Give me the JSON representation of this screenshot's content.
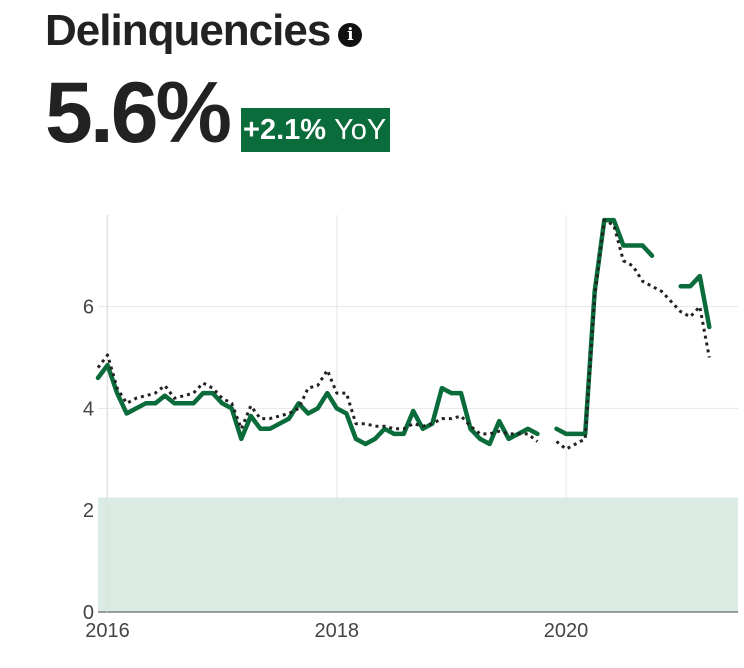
{
  "header": {
    "title": "Delinquencies",
    "info_icon": "info-icon",
    "value": "5.6%",
    "yoy_change": "+2.1%",
    "yoy_suffix": "YoY"
  },
  "colors": {
    "accent": "#0a6b3b",
    "band": "#d9ebe2",
    "text": "#222222",
    "grid": "#e6e6e6",
    "dotted_series": "#222222"
  },
  "chart_data": {
    "type": "line",
    "x_axis": {
      "type": "date",
      "range": [
        "2015-12",
        "2021-07"
      ],
      "ticks": [
        "2016",
        "2018",
        "2020"
      ]
    },
    "y_axis": {
      "range": [
        0,
        7.8
      ],
      "ticks": [
        0,
        2,
        4,
        6
      ]
    },
    "grid": true,
    "shaded_band": {
      "y_from": 0,
      "y_to": 2.25
    },
    "series": [
      {
        "style": "solid",
        "color": "#0a6b3b",
        "segments": [
          {
            "x": [
              "2015-12",
              "2016-01",
              "2016-02",
              "2016-03",
              "2016-04",
              "2016-05",
              "2016-06",
              "2016-07",
              "2016-08",
              "2016-09",
              "2016-10",
              "2016-11",
              "2016-12",
              "2017-01",
              "2017-02",
              "2017-03",
              "2017-04",
              "2017-05",
              "2017-06",
              "2017-07",
              "2017-08",
              "2017-09",
              "2017-10",
              "2017-11",
              "2017-12",
              "2018-01",
              "2018-02",
              "2018-03",
              "2018-04",
              "2018-05",
              "2018-06",
              "2018-07",
              "2018-08",
              "2018-09",
              "2018-10",
              "2018-11",
              "2018-12",
              "2019-01",
              "2019-02",
              "2019-03",
              "2019-04",
              "2019-05",
              "2019-06",
              "2019-07",
              "2019-08",
              "2019-09",
              "2019-10"
            ],
            "y": [
              4.6,
              4.85,
              4.3,
              3.9,
              4.0,
              4.1,
              4.1,
              4.25,
              4.1,
              4.1,
              4.1,
              4.3,
              4.3,
              4.1,
              4.0,
              3.4,
              3.85,
              3.6,
              3.6,
              3.7,
              3.8,
              4.1,
              3.9,
              4.0,
              4.3,
              4.0,
              3.9,
              3.4,
              3.3,
              3.4,
              3.6,
              3.5,
              3.5,
              3.95,
              3.6,
              3.7,
              4.4,
              4.3,
              4.3,
              3.6,
              3.4,
              3.3,
              3.75,
              3.4,
              3.5,
              3.6,
              3.5
            ]
          },
          {
            "x": [
              "2019-12",
              "2020-01",
              "2020-02",
              "2020-03",
              "2020-04",
              "2020-05",
              "2020-06",
              "2020-07",
              "2020-08",
              "2020-09",
              "2020-10"
            ],
            "y": [
              3.6,
              3.5,
              3.5,
              3.5,
              6.3,
              7.7,
              7.7,
              7.2,
              7.2,
              7.2,
              7.0
            ]
          },
          {
            "x": [
              "2021-01",
              "2021-02",
              "2021-03",
              "2021-04"
            ],
            "y": [
              6.4,
              6.4,
              6.6,
              5.6
            ]
          }
        ]
      },
      {
        "style": "dotted",
        "color": "#222222",
        "segments": [
          {
            "x": [
              "2015-12",
              "2016-01",
              "2016-02",
              "2016-03",
              "2016-04",
              "2016-05",
              "2016-06",
              "2016-07",
              "2016-08",
              "2016-09",
              "2016-10",
              "2016-11",
              "2016-12",
              "2017-01",
              "2017-02",
              "2017-03",
              "2017-04",
              "2017-05",
              "2017-06",
              "2017-07",
              "2017-08",
              "2017-09",
              "2017-10",
              "2017-11",
              "2017-12",
              "2018-01",
              "2018-02",
              "2018-03",
              "2018-04",
              "2018-05",
              "2018-06",
              "2018-07",
              "2018-08",
              "2018-09",
              "2018-10",
              "2018-11",
              "2018-12",
              "2019-01",
              "2019-02",
              "2019-03",
              "2019-04",
              "2019-05",
              "2019-06",
              "2019-07",
              "2019-08",
              "2019-09",
              "2019-10"
            ],
            "y": [
              4.8,
              5.05,
              4.4,
              4.1,
              4.2,
              4.25,
              4.3,
              4.45,
              4.2,
              4.25,
              4.3,
              4.5,
              4.4,
              4.2,
              4.1,
              3.6,
              4.05,
              3.8,
              3.8,
              3.85,
              3.9,
              4.0,
              4.4,
              4.45,
              4.75,
              4.3,
              4.3,
              3.7,
              3.7,
              3.65,
              3.65,
              3.6,
              3.6,
              3.7,
              3.65,
              3.7,
              3.8,
              3.8,
              3.85,
              3.65,
              3.5,
              3.5,
              3.55,
              3.5,
              3.5,
              3.5,
              3.35
            ]
          },
          {
            "x": [
              "2019-12",
              "2020-01",
              "2020-02",
              "2020-03",
              "2020-04",
              "2020-05",
              "2020-06",
              "2020-07",
              "2020-08",
              "2020-09",
              "2020-10",
              "2020-11",
              "2020-12",
              "2021-01",
              "2021-02",
              "2021-03",
              "2021-04"
            ],
            "y": [
              3.35,
              3.2,
              3.3,
              3.4,
              6.2,
              7.7,
              7.6,
              6.9,
              6.8,
              6.5,
              6.4,
              6.3,
              6.1,
              5.9,
              5.8,
              6.0,
              5.0
            ]
          }
        ]
      }
    ]
  }
}
